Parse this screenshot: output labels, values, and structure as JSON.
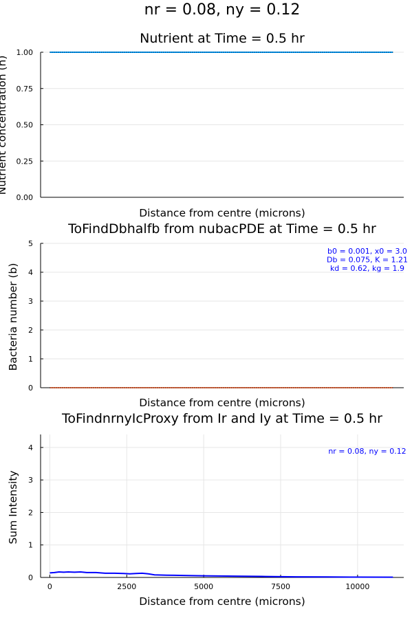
{
  "figure_title": "nr = 0.08, ny = 0.12",
  "chart_data": [
    {
      "type": "line",
      "title": "Nutrient at Time = 0.5 hr",
      "xlabel": "Distance from centre (microns)",
      "ylabel": "Nutrient concentration (n)",
      "ylim": [
        0,
        1
      ],
      "xlim": [
        -300,
        11500
      ],
      "yticks": [
        "0.00",
        "0.25",
        "0.50",
        "0.75",
        "1.00"
      ],
      "xticks": [],
      "grid": true,
      "legend": "none",
      "annotations": [],
      "series": [
        {
          "color": "#009AFA",
          "x": [
            0,
            11150
          ],
          "y": [
            1.0,
            1.0
          ]
        },
        {
          "color": "#000000",
          "x": [
            0,
            11150
          ],
          "y": [
            1.0,
            1.0
          ],
          "dotted": true
        }
      ]
    },
    {
      "type": "line",
      "title": "ToFindDbhalfb from nubacPDE at Time = 0.5 hr",
      "xlabel": "Distance from centre (microns)",
      "ylabel": "Bacteria number (b)",
      "ylim": [
        0,
        5
      ],
      "xlim": [
        -300,
        11500
      ],
      "yticks": [
        "0",
        "1",
        "2",
        "3",
        "4",
        "5"
      ],
      "xticks": [],
      "grid": true,
      "legend": "none",
      "annotations": [
        "b0 = 0.001, x0 = 3.0",
        "Db = 0.075, K = 1.21",
        "kd = 0.62, kg = 1.9"
      ],
      "series": [
        {
          "color": "#009AFA",
          "x": [
            0,
            11150
          ],
          "y": [
            0.001,
            0.001
          ]
        },
        {
          "color": "#E26F46",
          "x": [
            0,
            11150
          ],
          "y": [
            0.001,
            0.001
          ]
        },
        {
          "color": "#000000",
          "x": [
            0,
            11150
          ],
          "y": [
            0.001,
            0.001
          ],
          "dotted": true
        }
      ]
    },
    {
      "type": "line",
      "title": "ToFindnrnyIcProxy from Ir and Iy at Time = 0.5 hr",
      "xlabel": "Distance from centre (microns)",
      "ylabel": "Sum Intensity",
      "ylim": [
        0,
        4.4
      ],
      "xlim": [
        -300,
        11500
      ],
      "yticks": [
        "0",
        "1",
        "2",
        "3",
        "4"
      ],
      "xticks": [
        "0",
        "2500",
        "5000",
        "7500",
        "10000"
      ],
      "grid": true,
      "legend": "none",
      "annotations": [
        "nr = 0.08, ny = 0.12"
      ],
      "series": [
        {
          "color": "#0000FF",
          "x": [
            0,
            150,
            300,
            450,
            600,
            800,
            1000,
            1200,
            1500,
            1800,
            2100,
            2400,
            2600,
            2800,
            3000,
            3200,
            3400,
            3800,
            4500,
            5000,
            6000,
            7000,
            8000,
            9000,
            10000,
            11150
          ],
          "y": [
            0.14,
            0.15,
            0.17,
            0.16,
            0.17,
            0.16,
            0.17,
            0.15,
            0.15,
            0.13,
            0.13,
            0.12,
            0.11,
            0.12,
            0.13,
            0.11,
            0.08,
            0.07,
            0.06,
            0.05,
            0.04,
            0.03,
            0.02,
            0.015,
            0.01,
            0.008
          ]
        }
      ]
    }
  ]
}
